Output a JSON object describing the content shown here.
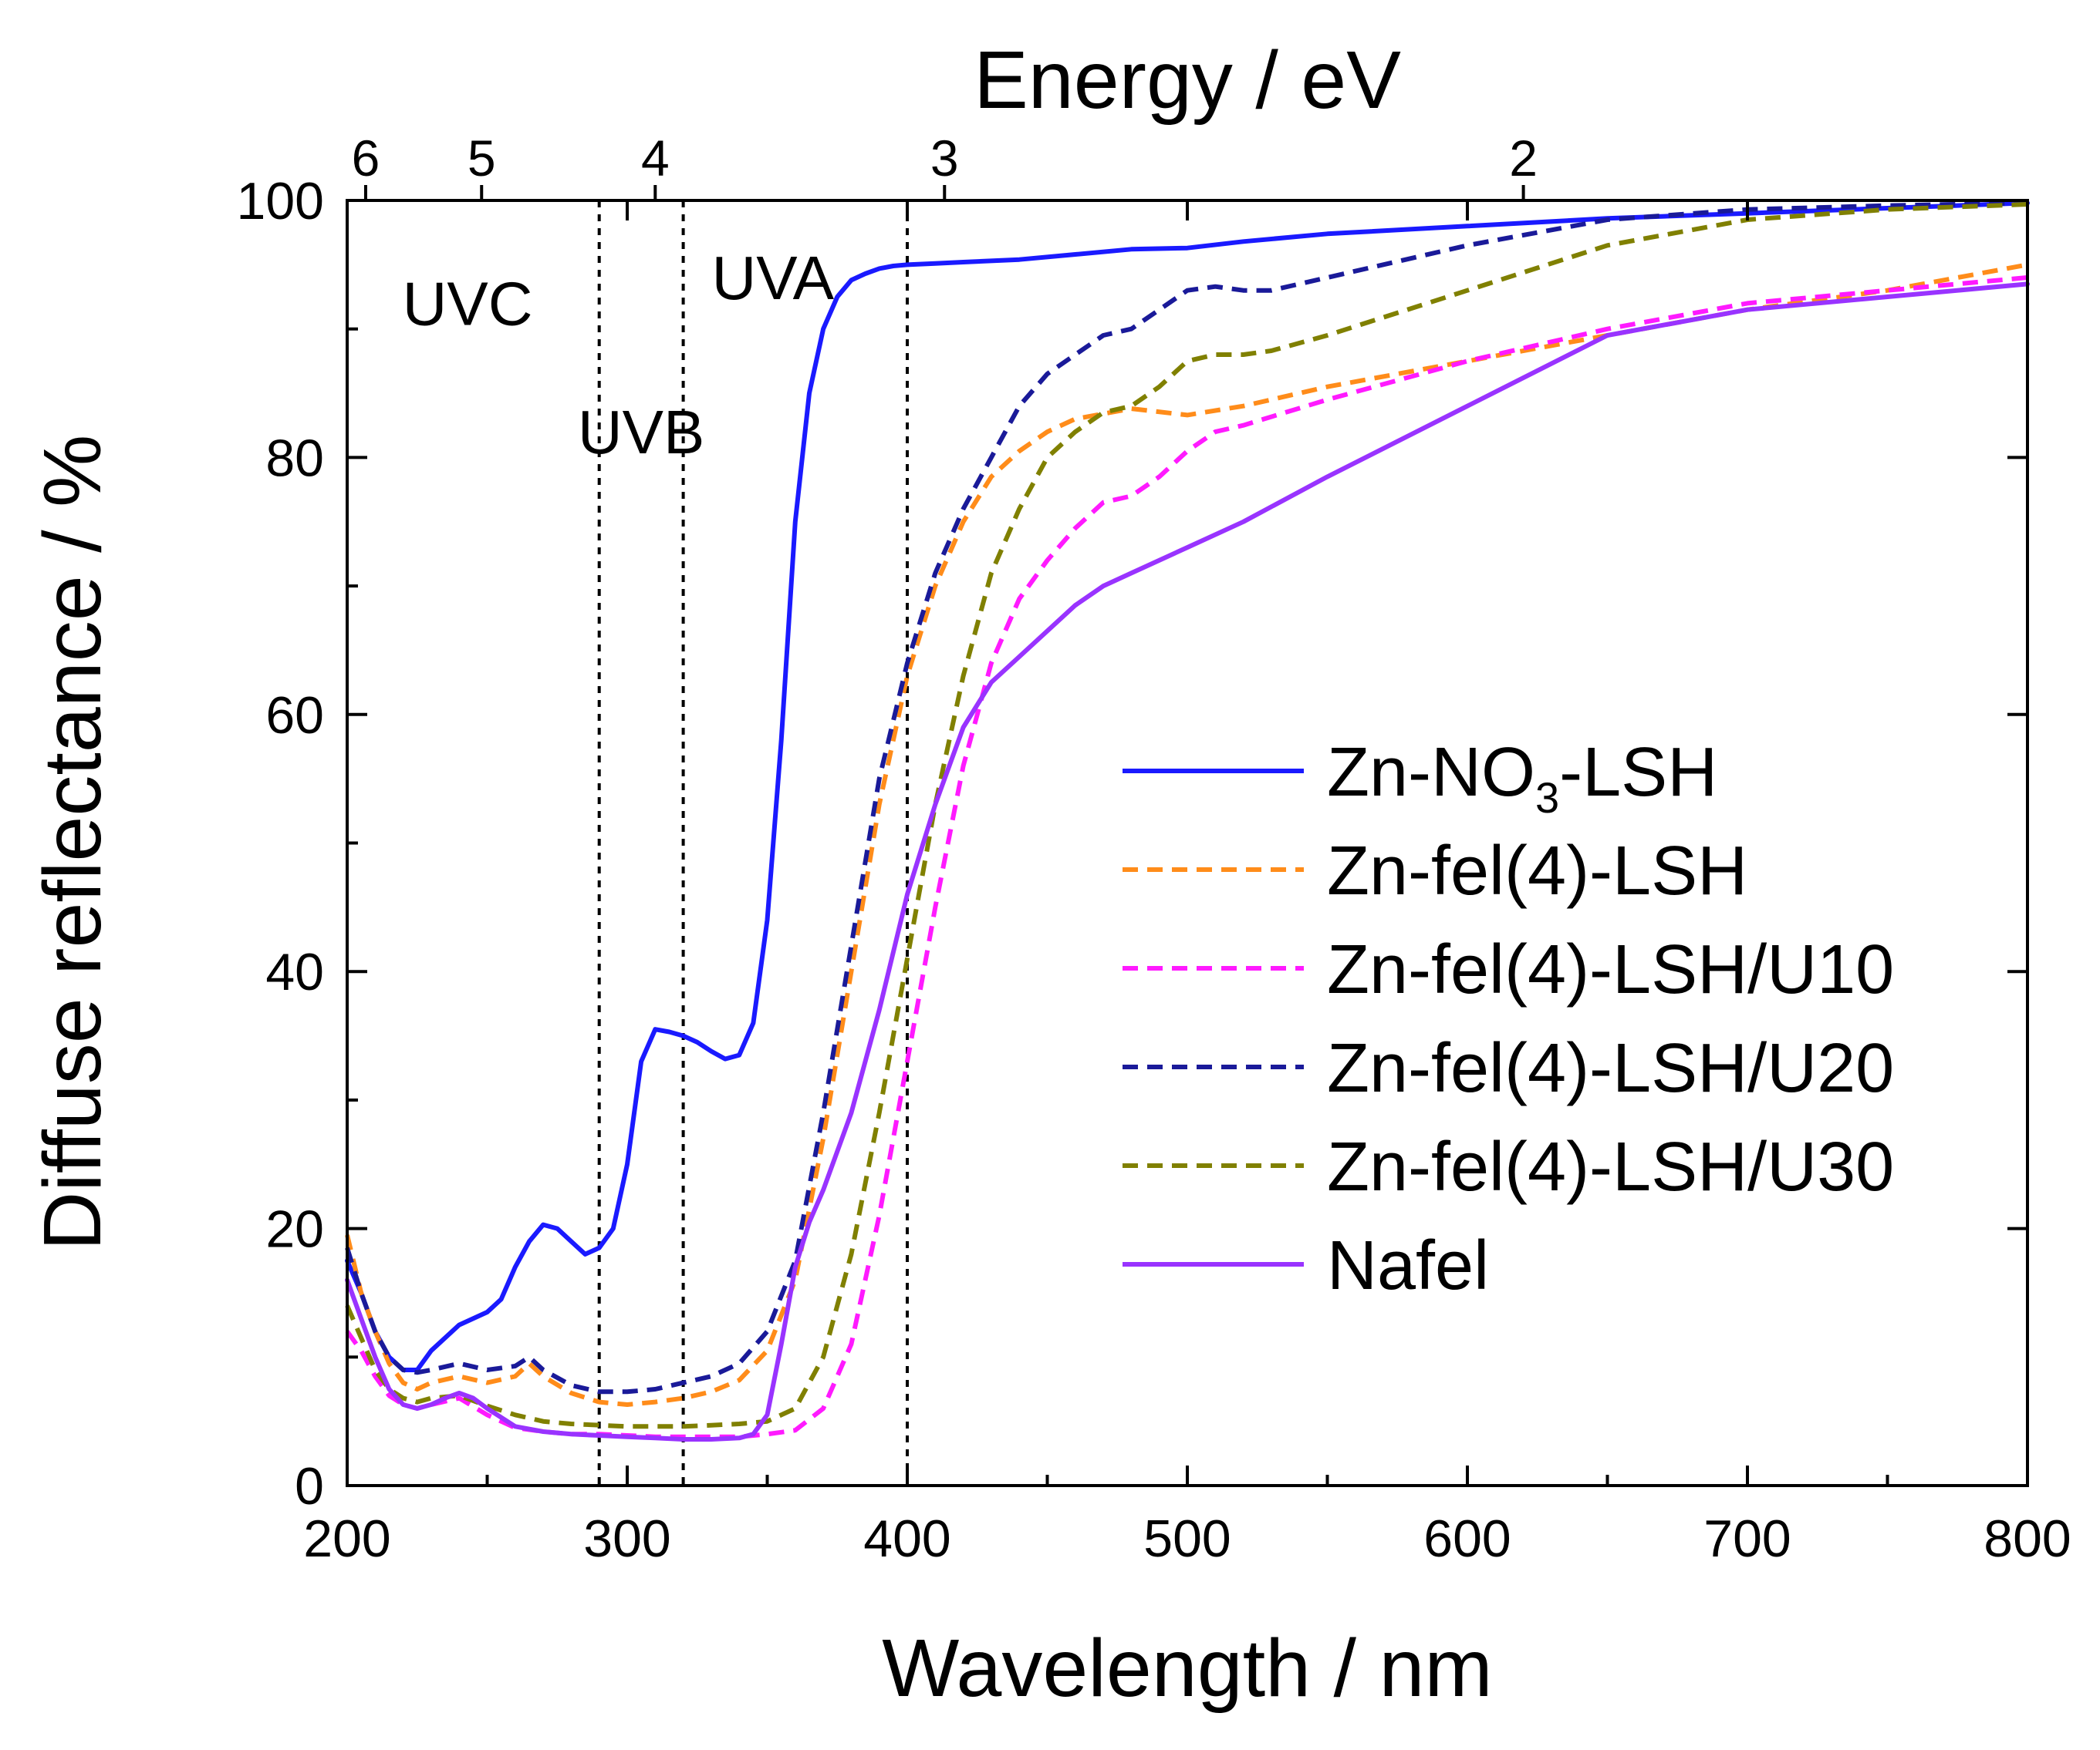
{
  "chart_data": {
    "type": "line",
    "xlabel": "Wavelength / nm",
    "ylabel": "Diffuse reflectance / %",
    "x2label": "Energy / eV",
    "xlim": [
      200,
      800
    ],
    "ylim": [
      0,
      100
    ],
    "xticks": [
      200,
      300,
      400,
      500,
      600,
      700,
      800
    ],
    "yticks": [
      0,
      20,
      40,
      60,
      80,
      100
    ],
    "x2ticks": [
      {
        "label": "6",
        "wavelength": 206.6
      },
      {
        "label": "5",
        "wavelength": 248
      },
      {
        "label": "4",
        "wavelength": 310
      },
      {
        "label": "3",
        "wavelength": 413.3
      },
      {
        "label": "2",
        "wavelength": 620
      }
    ],
    "reference_lines": [
      290,
      320,
      400
    ],
    "regions": [
      {
        "label": "UVC",
        "x": 243,
        "y": 92
      },
      {
        "label": "UVB",
        "x": 305,
        "y": 82
      },
      {
        "label": "UVA",
        "x": 352,
        "y": 94
      }
    ],
    "legend_position": "right",
    "series": [
      {
        "name": "Zn-NO3-LSH",
        "label_main": "Zn-NO",
        "label_sub": "3",
        "label_tail": "-LSH",
        "color": "#1a1aff",
        "dash": "solid",
        "x": [
          200,
          205,
          210,
          215,
          220,
          225,
          230,
          240,
          250,
          255,
          260,
          265,
          270,
          275,
          280,
          285,
          290,
          295,
          300,
          305,
          310,
          315,
          320,
          325,
          330,
          335,
          340,
          345,
          350,
          355,
          360,
          365,
          370,
          375,
          380,
          385,
          390,
          395,
          400,
          410,
          420,
          440,
          460,
          480,
          500,
          520,
          550,
          600,
          650,
          700,
          750,
          800
        ],
        "y": [
          17.5,
          15,
          12,
          10,
          9,
          9,
          10.5,
          12.5,
          13.5,
          14.5,
          17,
          19,
          20.3,
          20,
          19,
          18,
          18.5,
          20,
          25,
          33,
          35.5,
          35.3,
          35,
          34.5,
          33.8,
          33.2,
          33.5,
          36,
          44,
          58,
          75,
          85,
          90,
          92.5,
          93.8,
          94.3,
          94.7,
          94.9,
          95,
          95.1,
          95.2,
          95.4,
          95.8,
          96.2,
          96.3,
          96.8,
          97.4,
          98,
          98.6,
          99,
          99.4,
          99.8
        ]
      },
      {
        "name": "Zn-fel(4)-LSH",
        "label_main": "Zn-fel(4)-LSH",
        "color": "#ff8c1a",
        "dash": "dashed",
        "x": [
          200,
          205,
          210,
          215,
          220,
          225,
          230,
          240,
          250,
          260,
          265,
          270,
          280,
          290,
          300,
          310,
          320,
          330,
          340,
          350,
          360,
          370,
          380,
          390,
          400,
          410,
          420,
          430,
          440,
          450,
          460,
          480,
          500,
          520,
          550,
          600,
          650,
          700,
          750,
          800
        ],
        "y": [
          19.5,
          15,
          12,
          9.5,
          8,
          7.5,
          8,
          8.5,
          8,
          8.5,
          9.5,
          8.5,
          7.2,
          6.5,
          6.3,
          6.5,
          6.8,
          7.3,
          8.2,
          10.5,
          16,
          27,
          40,
          53,
          63,
          70,
          75,
          78.5,
          80.5,
          82,
          83,
          83.8,
          83.3,
          84,
          85.5,
          87.5,
          89.5,
          91.5,
          93,
          95
        ]
      },
      {
        "name": "Zn-fel(4)-LSH/U10",
        "label_main": "Zn-fel(4)-LSH/U10",
        "color": "#ff1aff",
        "dash": "dashed",
        "x": [
          200,
          205,
          210,
          215,
          220,
          225,
          230,
          240,
          250,
          260,
          270,
          280,
          290,
          300,
          310,
          320,
          330,
          340,
          350,
          360,
          370,
          380,
          390,
          400,
          410,
          420,
          430,
          440,
          450,
          460,
          470,
          480,
          490,
          500,
          510,
          520,
          550,
          600,
          650,
          700,
          750,
          800
        ],
        "y": [
          12,
          10.5,
          8.5,
          7,
          6.3,
          6,
          6.3,
          6.8,
          5.5,
          4.5,
          4.2,
          4,
          4,
          3.9,
          3.8,
          3.8,
          3.8,
          3.8,
          4,
          4.3,
          6,
          11,
          21,
          33,
          45,
          56,
          64,
          69,
          72,
          74.5,
          76.5,
          77,
          78.5,
          80.5,
          82,
          82.5,
          84.5,
          87.5,
          90,
          92,
          93,
          94
        ]
      },
      {
        "name": "Zn-fel(4)-LSH/U20",
        "label_main": "Zn-fel(4)-LSH/U20",
        "color": "#1a1a99",
        "dash": "dashed",
        "x": [
          200,
          205,
          210,
          215,
          220,
          225,
          230,
          240,
          250,
          260,
          265,
          270,
          280,
          290,
          300,
          310,
          320,
          330,
          340,
          350,
          360,
          370,
          380,
          390,
          400,
          410,
          420,
          430,
          440,
          450,
          460,
          470,
          480,
          490,
          500,
          510,
          520,
          530,
          550,
          600,
          650,
          700,
          750,
          800
        ],
        "y": [
          18.5,
          15,
          12,
          10,
          9,
          8.8,
          9,
          9.5,
          9,
          9.3,
          10,
          9,
          7.8,
          7.3,
          7.3,
          7.5,
          8,
          8.5,
          9.5,
          12,
          17.5,
          29,
          42,
          55,
          64,
          71,
          76,
          80,
          84,
          86.5,
          88,
          89.5,
          90,
          91.5,
          93,
          93.3,
          93,
          93,
          94,
          96.5,
          98.5,
          99.3,
          99.6,
          99.8
        ]
      },
      {
        "name": "Zn-fel(4)-LSH/U30",
        "label_main": "Zn-fel(4)-LSH/U30",
        "color": "#808000",
        "dash": "dashed",
        "x": [
          200,
          205,
          210,
          215,
          220,
          225,
          230,
          240,
          250,
          260,
          270,
          280,
          290,
          300,
          310,
          320,
          330,
          340,
          350,
          360,
          370,
          380,
          390,
          400,
          410,
          420,
          430,
          440,
          450,
          460,
          470,
          480,
          490,
          500,
          510,
          520,
          530,
          550,
          600,
          650,
          700,
          750,
          800
        ],
        "y": [
          14,
          11.5,
          9,
          7.5,
          6.8,
          6.5,
          6.8,
          7,
          6.2,
          5.5,
          5,
          4.8,
          4.7,
          4.6,
          4.6,
          4.6,
          4.7,
          4.8,
          5,
          6,
          10,
          18,
          29,
          41,
          53,
          63,
          71,
          76,
          80,
          82,
          83.5,
          84,
          85.5,
          87.5,
          88,
          88,
          88.3,
          89.5,
          93,
          96.5,
          98.5,
          99.3,
          99.7
        ]
      },
      {
        "name": "Nafel",
        "label_main": "Nafel",
        "color": "#9933ff",
        "dash": "solid",
        "x": [
          200,
          205,
          210,
          215,
          220,
          225,
          230,
          235,
          240,
          245,
          250,
          260,
          270,
          280,
          290,
          300,
          310,
          320,
          330,
          340,
          345,
          350,
          355,
          360,
          365,
          370,
          380,
          390,
          400,
          410,
          420,
          430,
          440,
          450,
          460,
          470,
          480,
          500,
          520,
          550,
          600,
          650,
          700,
          750,
          800
        ],
        "y": [
          16,
          13,
          10,
          7.5,
          6.3,
          6,
          6.3,
          6.8,
          7.2,
          6.8,
          6,
          4.6,
          4.2,
          4,
          3.9,
          3.8,
          3.7,
          3.6,
          3.6,
          3.7,
          4,
          5.5,
          11,
          17,
          20.5,
          23,
          29,
          37,
          46,
          53,
          59,
          62.5,
          64.5,
          66.5,
          68.5,
          70,
          71,
          73,
          75,
          78.5,
          84,
          89.5,
          91.5,
          92.5,
          93.5
        ]
      }
    ]
  }
}
